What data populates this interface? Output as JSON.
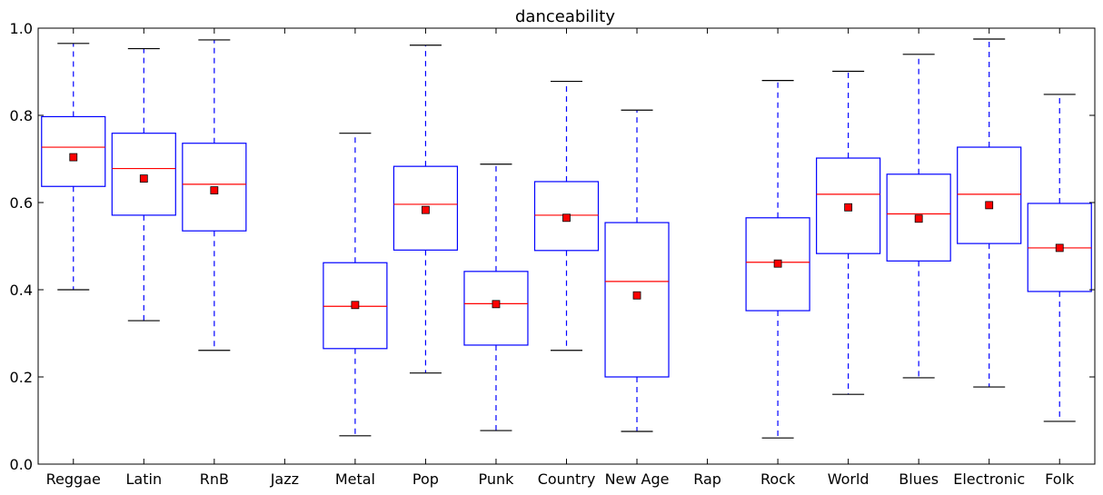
{
  "chart_data": {
    "type": "box",
    "title": "danceability",
    "xlabel": "",
    "ylabel": "",
    "ylim": [
      0.0,
      1.0
    ],
    "yticks": [
      "0.0",
      "0.2",
      "0.4",
      "0.6",
      "0.8",
      "1.0"
    ],
    "grid": false,
    "categories": [
      "Reggae",
      "Latin",
      "RnB",
      "Jazz",
      "Metal",
      "Pop",
      "Punk",
      "Country",
      "New Age",
      "Rap",
      "Rock",
      "World",
      "Blues",
      "Electronic",
      "Folk"
    ],
    "boxes": [
      {
        "whisker_low": 0.4,
        "q1": 0.637,
        "median": 0.727,
        "q3": 0.797,
        "whisker_high": 0.965,
        "mean": 0.704
      },
      {
        "whisker_low": 0.329,
        "q1": 0.571,
        "median": 0.678,
        "q3": 0.759,
        "whisker_high": 0.953,
        "mean": 0.655
      },
      {
        "whisker_low": 0.261,
        "q1": 0.535,
        "median": 0.642,
        "q3": 0.736,
        "whisker_high": 0.973,
        "mean": 0.628
      },
      null,
      {
        "whisker_low": 0.065,
        "q1": 0.265,
        "median": 0.362,
        "q3": 0.462,
        "whisker_high": 0.759,
        "mean": 0.365
      },
      {
        "whisker_low": 0.209,
        "q1": 0.491,
        "median": 0.596,
        "q3": 0.683,
        "whisker_high": 0.961,
        "mean": 0.583
      },
      {
        "whisker_low": 0.077,
        "q1": 0.273,
        "median": 0.368,
        "q3": 0.442,
        "whisker_high": 0.688,
        "mean": 0.367
      },
      {
        "whisker_low": 0.261,
        "q1": 0.49,
        "median": 0.571,
        "q3": 0.648,
        "whisker_high": 0.878,
        "mean": 0.565
      },
      {
        "whisker_low": 0.075,
        "q1": 0.2,
        "median": 0.419,
        "q3": 0.554,
        "whisker_high": 0.812,
        "mean": 0.387
      },
      null,
      {
        "whisker_low": 0.06,
        "q1": 0.352,
        "median": 0.463,
        "q3": 0.565,
        "whisker_high": 0.88,
        "mean": 0.46
      },
      {
        "whisker_low": 0.16,
        "q1": 0.483,
        "median": 0.619,
        "q3": 0.702,
        "whisker_high": 0.901,
        "mean": 0.589
      },
      {
        "whisker_low": 0.198,
        "q1": 0.466,
        "median": 0.574,
        "q3": 0.665,
        "whisker_high": 0.94,
        "mean": 0.563
      },
      {
        "whisker_low": 0.177,
        "q1": 0.506,
        "median": 0.619,
        "q3": 0.727,
        "whisker_high": 0.975,
        "mean": 0.594
      },
      {
        "whisker_low": 0.098,
        "q1": 0.396,
        "median": 0.496,
        "q3": 0.598,
        "whisker_high": 0.848,
        "mean": 0.496
      }
    ],
    "colors": {
      "box": "#0000ff",
      "whisker": "#0000ff",
      "cap": "#000000",
      "median": "#ff0000",
      "mean_marker": "#ff0000",
      "axis": "#000000"
    }
  }
}
